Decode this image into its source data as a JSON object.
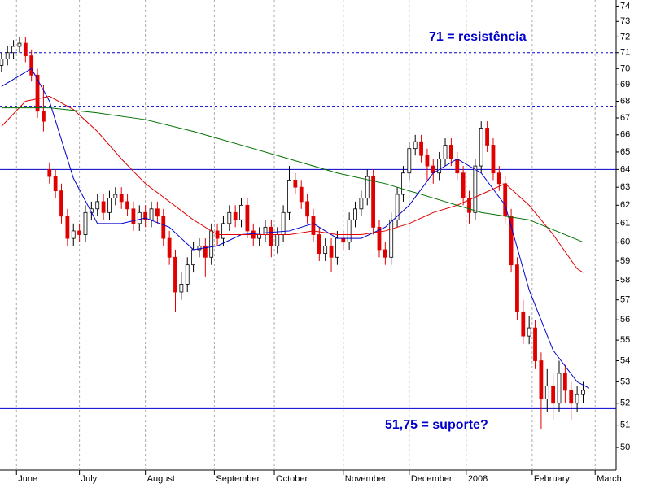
{
  "chart_data": {
    "type": "candlestick",
    "log_scale": true,
    "ylim": [
      49,
      74.4
    ],
    "yticks": [
      50,
      51,
      52,
      53,
      54,
      55,
      56,
      57,
      58,
      59,
      60,
      61,
      62,
      63,
      64,
      65,
      66,
      67,
      68,
      69,
      70,
      71,
      72,
      73,
      74
    ],
    "xlim": [
      -0.5,
      205
    ],
    "xticks": [
      {
        "value": 5,
        "label": "June"
      },
      {
        "value": 26,
        "label": "July"
      },
      {
        "value": 48,
        "label": "August"
      },
      {
        "value": 71,
        "label": "September"
      },
      {
        "value": 91,
        "label": "October"
      },
      {
        "value": 114,
        "label": "November"
      },
      {
        "value": 136,
        "label": "December"
      },
      {
        "value": 155,
        "label": "2008"
      },
      {
        "value": 177,
        "label": "February"
      },
      {
        "value": 198,
        "label": "March"
      }
    ],
    "up_color": "#ffffff",
    "down_color": "#e00000",
    "x": [
      0,
      2,
      4,
      6,
      8,
      10,
      12,
      14,
      16,
      18,
      20,
      22,
      24,
      26,
      28,
      30,
      32,
      34,
      36,
      38,
      40,
      42,
      44,
      46,
      48,
      50,
      52,
      54,
      56,
      58,
      60,
      62,
      64,
      66,
      68,
      70,
      72,
      74,
      76,
      78,
      80,
      82,
      84,
      86,
      88,
      90,
      92,
      94,
      96,
      98,
      100,
      102,
      104,
      106,
      108,
      110,
      112,
      114,
      116,
      118,
      120,
      122,
      124,
      126,
      128,
      130,
      132,
      134,
      136,
      138,
      140,
      142,
      144,
      146,
      148,
      150,
      152,
      154,
      156,
      158,
      160,
      162,
      164,
      166,
      168,
      170,
      172,
      174,
      176,
      178,
      180,
      182,
      184,
      186,
      188,
      190,
      192,
      194
    ],
    "ohlc": [
      [
        70.2,
        71.0,
        69.8,
        70.6
      ],
      [
        70.6,
        71.4,
        70.2,
        71.0
      ],
      [
        71.0,
        71.8,
        70.6,
        71.4
      ],
      [
        71.4,
        72.0,
        71.0,
        71.6
      ],
      [
        71.6,
        72.0,
        70.4,
        70.8
      ],
      [
        70.8,
        71.2,
        69.2,
        69.6
      ],
      [
        69.6,
        70.0,
        67.0,
        67.4
      ],
      [
        67.4,
        69.0,
        66.2,
        66.8
      ],
      [
        64.0,
        64.4,
        63.2,
        63.6
      ],
      [
        63.6,
        64.0,
        62.4,
        62.8
      ],
      [
        62.8,
        63.2,
        61.0,
        61.4
      ],
      [
        61.4,
        61.8,
        59.8,
        60.2
      ],
      [
        60.2,
        61.0,
        59.8,
        60.6
      ],
      [
        60.6,
        61.0,
        60.0,
        60.4
      ],
      [
        60.4,
        62.0,
        60.0,
        61.6
      ],
      [
        61.6,
        62.2,
        61.2,
        61.8
      ],
      [
        61.8,
        62.6,
        61.4,
        62.2
      ],
      [
        62.2,
        62.6,
        61.2,
        61.6
      ],
      [
        61.6,
        62.8,
        61.2,
        62.4
      ],
      [
        62.4,
        63.0,
        62.0,
        62.6
      ],
      [
        62.6,
        63.0,
        61.8,
        62.2
      ],
      [
        62.2,
        62.6,
        61.4,
        61.8
      ],
      [
        61.8,
        62.2,
        60.6,
        61.0
      ],
      [
        61.0,
        62.0,
        60.6,
        61.6
      ],
      [
        61.6,
        62.0,
        60.8,
        61.2
      ],
      [
        61.2,
        62.2,
        60.8,
        61.8
      ],
      [
        61.8,
        62.2,
        61.0,
        61.4
      ],
      [
        61.4,
        61.8,
        59.8,
        60.2
      ],
      [
        60.2,
        60.6,
        58.8,
        59.2
      ],
      [
        59.2,
        59.6,
        56.4,
        57.4
      ],
      [
        57.4,
        58.4,
        57.0,
        57.8
      ],
      [
        57.8,
        59.2,
        57.4,
        58.8
      ],
      [
        58.8,
        60.0,
        58.4,
        59.6
      ],
      [
        59.6,
        60.2,
        59.2,
        59.8
      ],
      [
        59.8,
        60.2,
        58.2,
        59.2
      ],
      [
        59.2,
        61.0,
        58.8,
        60.6
      ],
      [
        60.6,
        61.0,
        59.8,
        60.2
      ],
      [
        60.2,
        61.4,
        59.8,
        61.0
      ],
      [
        61.0,
        62.0,
        60.6,
        61.6
      ],
      [
        61.6,
        62.0,
        60.8,
        61.2
      ],
      [
        61.2,
        62.4,
        60.8,
        62.0
      ],
      [
        62.0,
        62.4,
        60.2,
        60.6
      ],
      [
        60.6,
        61.0,
        59.8,
        60.2
      ],
      [
        60.2,
        60.8,
        59.8,
        60.4
      ],
      [
        60.4,
        61.2,
        60.0,
        60.8
      ],
      [
        60.8,
        61.2,
        59.2,
        59.8
      ],
      [
        59.8,
        60.8,
        59.4,
        60.4
      ],
      [
        60.4,
        62.0,
        60.0,
        61.6
      ],
      [
        61.6,
        64.2,
        61.2,
        63.4
      ],
      [
        63.4,
        63.8,
        62.6,
        63.0
      ],
      [
        63.0,
        63.4,
        61.8,
        62.2
      ],
      [
        62.2,
        62.6,
        61.0,
        61.4
      ],
      [
        61.4,
        61.8,
        60.0,
        60.4
      ],
      [
        60.4,
        60.8,
        59.0,
        59.4
      ],
      [
        59.4,
        60.2,
        59.0,
        59.8
      ],
      [
        59.8,
        60.2,
        58.4,
        59.2
      ],
      [
        59.2,
        60.6,
        58.8,
        60.2
      ],
      [
        60.2,
        60.6,
        59.6,
        60.0
      ],
      [
        60.0,
        61.6,
        59.6,
        61.2
      ],
      [
        61.2,
        62.2,
        60.8,
        61.8
      ],
      [
        61.8,
        62.8,
        61.4,
        62.4
      ],
      [
        62.4,
        64.0,
        62.0,
        63.6
      ],
      [
        63.6,
        64.0,
        60.4,
        60.8
      ],
      [
        60.8,
        61.2,
        59.2,
        59.6
      ],
      [
        59.6,
        60.0,
        58.8,
        59.2
      ],
      [
        59.2,
        61.6,
        58.8,
        61.2
      ],
      [
        61.2,
        63.0,
        60.8,
        62.6
      ],
      [
        62.6,
        64.2,
        62.2,
        63.8
      ],
      [
        63.8,
        65.6,
        63.4,
        65.2
      ],
      [
        65.2,
        66.0,
        64.8,
        65.6
      ],
      [
        65.6,
        66.0,
        64.4,
        64.8
      ],
      [
        64.8,
        65.2,
        63.4,
        64.2
      ],
      [
        64.2,
        64.6,
        63.2,
        63.8
      ],
      [
        63.8,
        65.0,
        63.4,
        64.6
      ],
      [
        64.6,
        65.8,
        64.2,
        65.4
      ],
      [
        65.4,
        65.8,
        64.2,
        64.6
      ],
      [
        64.6,
        65.0,
        63.4,
        63.8
      ],
      [
        63.8,
        64.2,
        62.0,
        62.4
      ],
      [
        62.4,
        62.8,
        61.0,
        61.6
      ],
      [
        61.6,
        64.6,
        61.2,
        64.2
      ],
      [
        64.2,
        66.8,
        63.8,
        66.4
      ],
      [
        66.4,
        66.8,
        65.0,
        65.4
      ],
      [
        65.4,
        65.8,
        63.4,
        63.8
      ],
      [
        63.8,
        64.2,
        62.8,
        63.2
      ],
      [
        63.2,
        63.6,
        61.0,
        61.4
      ],
      [
        61.4,
        61.8,
        58.4,
        58.8
      ],
      [
        58.8,
        59.2,
        56.0,
        56.4
      ],
      [
        56.4,
        57.0,
        54.8,
        55.2
      ],
      [
        55.2,
        56.2,
        54.8,
        55.6
      ],
      [
        55.6,
        56.0,
        53.6,
        54.0
      ],
      [
        54.0,
        54.4,
        50.8,
        52.2
      ],
      [
        52.2,
        53.6,
        51.6,
        52.8
      ],
      [
        52.8,
        53.4,
        51.2,
        52.0
      ],
      [
        52.0,
        54.0,
        51.6,
        53.4
      ],
      [
        53.4,
        53.8,
        52.0,
        52.6
      ],
      [
        52.6,
        53.0,
        51.2,
        52.0
      ],
      [
        52.0,
        52.8,
        51.6,
        52.4
      ],
      [
        52.4,
        53.0,
        52.0,
        52.6
      ]
    ],
    "lines": [
      {
        "color": "#0000cc",
        "x": [
          0,
          10,
          16,
          24,
          32,
          40,
          48,
          56,
          64,
          72,
          80,
          88,
          96,
          104,
          112,
          120,
          128,
          136,
          144,
          152,
          160,
          168,
          176,
          184,
          192,
          196
        ],
        "values": [
          68.9,
          70.0,
          68.0,
          63.5,
          61.0,
          61.0,
          61.3,
          60.8,
          59.6,
          59.8,
          60.4,
          60.5,
          60.6,
          61.0,
          60.2,
          60.2,
          60.8,
          62.0,
          63.8,
          64.6,
          63.8,
          62.0,
          57.5,
          54.5,
          53.0,
          52.7
        ]
      },
      {
        "color": "#e00000",
        "x": [
          0,
          8,
          16,
          24,
          32,
          40,
          48,
          56,
          64,
          72,
          80,
          88,
          96,
          104,
          112,
          120,
          128,
          136,
          144,
          152,
          160,
          168,
          176,
          184,
          192,
          194
        ],
        "values": [
          66.5,
          68.0,
          68.3,
          67.5,
          66.2,
          64.6,
          63.2,
          62.2,
          61.2,
          60.4,
          60.4,
          60.4,
          60.4,
          60.6,
          60.4,
          60.4,
          60.6,
          61.0,
          61.6,
          62.0,
          62.6,
          63.2,
          62.0,
          60.4,
          58.6,
          58.4
        ]
      },
      {
        "color": "#007000",
        "x": [
          0,
          16,
          32,
          48,
          64,
          80,
          96,
          112,
          128,
          144,
          160,
          176,
          194
        ],
        "values": [
          67.6,
          67.6,
          67.3,
          66.9,
          66.2,
          65.4,
          64.6,
          63.8,
          63.2,
          62.4,
          61.6,
          61.2,
          60.0
        ]
      }
    ],
    "hlines": [
      {
        "value": 71,
        "style": "dashed",
        "color": "#0000cc"
      },
      {
        "value": 67.7,
        "style": "dashed",
        "color": "#0000cc"
      },
      {
        "value": 64,
        "style": "solid",
        "color": "#0000cc"
      },
      {
        "value": 51.75,
        "style": "solid",
        "color": "#0000cc"
      }
    ],
    "annotations": [
      "71 = resistência",
      "51,75 = suporte?"
    ]
  }
}
